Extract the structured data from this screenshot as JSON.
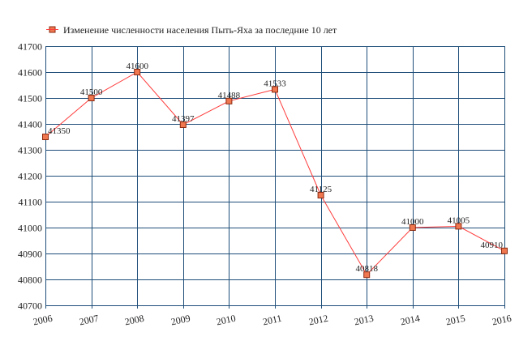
{
  "chart_data": {
    "type": "line",
    "title": "",
    "xlabel": "",
    "ylabel": "",
    "legend": {
      "position": "top-left",
      "entries": [
        "Изменение численности населения Пыть-Яха за последние 10 лет"
      ]
    },
    "categories": [
      "2006",
      "2007",
      "2008",
      "2009",
      "2010",
      "2011",
      "2012",
      "2013",
      "2014",
      "2015",
      "2016"
    ],
    "series": [
      {
        "name": "Изменение численности населения Пыть-Яха за последние 10 лет",
        "values": [
          41350,
          41500,
          41600,
          41397,
          41488,
          41533,
          41125,
          40818,
          41000,
          41005,
          40910
        ],
        "line_color": "#ff3b3b",
        "marker_color": "#f07850",
        "marker_stroke": "#8b2a10"
      }
    ],
    "ylim": [
      40700,
      41700
    ],
    "yticks": [
      40700,
      40800,
      40900,
      41000,
      41100,
      41200,
      41300,
      41400,
      41500,
      41600,
      41700
    ],
    "grid": true,
    "grid_color": "#1f4e79"
  }
}
